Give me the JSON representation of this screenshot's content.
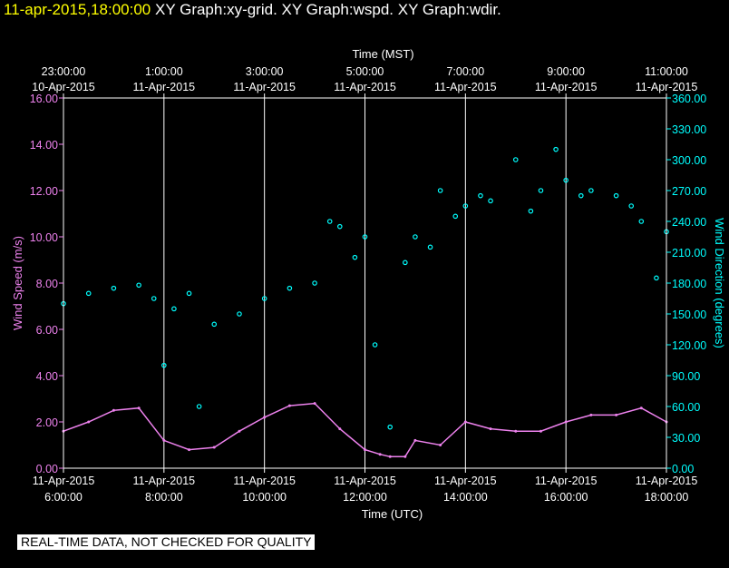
{
  "header": {
    "timestamp": "11-apr-2015,18:00:00",
    "graphs": [
      "XY Graph:xy-grid.",
      "XY Graph:wspd.",
      "XY Graph:wdir."
    ]
  },
  "footer": {
    "disclaimer": "REAL-TIME DATA, NOT CHECKED FOR QUALITY"
  },
  "colors": {
    "wind_speed": "#ee82ee",
    "wind_direction": "#00ffff",
    "grid": "#ffffff",
    "header_timestamp": "#ffff00"
  },
  "chart_data": {
    "type": "scatter",
    "top_axis": {
      "label": "Time (MST)",
      "ticks": [
        {
          "utc": 6,
          "time": "23:00:00",
          "date": "10-Apr-2015"
        },
        {
          "utc": 8,
          "time": "1:00:00",
          "date": "11-Apr-2015"
        },
        {
          "utc": 10,
          "time": "3:00:00",
          "date": "11-Apr-2015"
        },
        {
          "utc": 12,
          "time": "5:00:00",
          "date": "11-Apr-2015"
        },
        {
          "utc": 14,
          "time": "7:00:00",
          "date": "11-Apr-2015"
        },
        {
          "utc": 16,
          "time": "9:00:00",
          "date": "11-Apr-2015"
        },
        {
          "utc": 18,
          "time": "11:00:00",
          "date": "11-Apr-2015"
        }
      ]
    },
    "bottom_axis": {
      "label": "Time (UTC)",
      "ticks": [
        {
          "utc": 6,
          "date": "11-Apr-2015",
          "time": "6:00:00"
        },
        {
          "utc": 8,
          "date": "11-Apr-2015",
          "time": "8:00:00"
        },
        {
          "utc": 10,
          "date": "11-Apr-2015",
          "time": "10:00:00"
        },
        {
          "utc": 12,
          "date": "11-Apr-2015",
          "time": "12:00:00"
        },
        {
          "utc": 14,
          "date": "11-Apr-2015",
          "time": "14:00:00"
        },
        {
          "utc": 16,
          "date": "11-Apr-2015",
          "time": "16:00:00"
        },
        {
          "utc": 18,
          "date": "11-Apr-2015",
          "time": "18:00:00"
        }
      ]
    },
    "xlim_utc_hours": [
      6,
      18
    ],
    "grid": true,
    "left_axis": {
      "label": "Wind Speed (m/s)",
      "range": [
        0,
        16
      ],
      "ticks": [
        "0.00",
        "2.00",
        "4.00",
        "6.00",
        "8.00",
        "10.00",
        "12.00",
        "14.00",
        "16.00"
      ]
    },
    "right_axis": {
      "label": "Wind Direction (degrees)",
      "range": [
        0,
        360
      ],
      "ticks": [
        "0.00",
        "30.00",
        "60.00",
        "90.00",
        "120.00",
        "150.00",
        "180.00",
        "210.00",
        "240.00",
        "270.00",
        "300.00",
        "330.00",
        "360.00"
      ]
    },
    "series": [
      {
        "name": "wspd",
        "axis": "left",
        "style": "line",
        "x": [
          6.0,
          6.5,
          7.0,
          7.5,
          8.0,
          8.5,
          9.0,
          9.5,
          10.0,
          10.5,
          11.0,
          11.5,
          12.0,
          12.3,
          12.5,
          12.8,
          13.0,
          13.5,
          14.0,
          14.5,
          15.0,
          15.5,
          16.0,
          16.5,
          17.0,
          17.5,
          18.0
        ],
        "y": [
          1.6,
          2.0,
          2.5,
          2.6,
          1.2,
          0.8,
          0.9,
          1.6,
          2.2,
          2.7,
          2.8,
          1.7,
          0.8,
          0.6,
          0.5,
          0.5,
          1.2,
          1.0,
          2.0,
          1.7,
          1.6,
          1.6,
          2.0,
          2.3,
          2.3,
          2.6,
          2.0
        ]
      },
      {
        "name": "wdir",
        "axis": "right",
        "style": "points",
        "x": [
          6.0,
          6.5,
          7.0,
          7.5,
          7.8,
          8.0,
          8.2,
          8.5,
          8.7,
          9.0,
          9.5,
          10.0,
          10.5,
          11.0,
          11.3,
          11.5,
          11.8,
          12.0,
          12.2,
          12.5,
          12.8,
          13.0,
          13.3,
          13.5,
          13.8,
          14.0,
          14.3,
          14.5,
          15.0,
          15.3,
          15.5,
          15.8,
          16.0,
          16.3,
          16.5,
          17.0,
          17.3,
          17.5,
          17.8,
          18.0
        ],
        "y": [
          160,
          170,
          175,
          178,
          165,
          100,
          155,
          170,
          60,
          140,
          150,
          165,
          175,
          180,
          240,
          235,
          205,
          225,
          120,
          40,
          200,
          225,
          215,
          270,
          245,
          255,
          265,
          260,
          300,
          250,
          270,
          310,
          280,
          265,
          270,
          265,
          255,
          240,
          185,
          230
        ]
      }
    ]
  }
}
